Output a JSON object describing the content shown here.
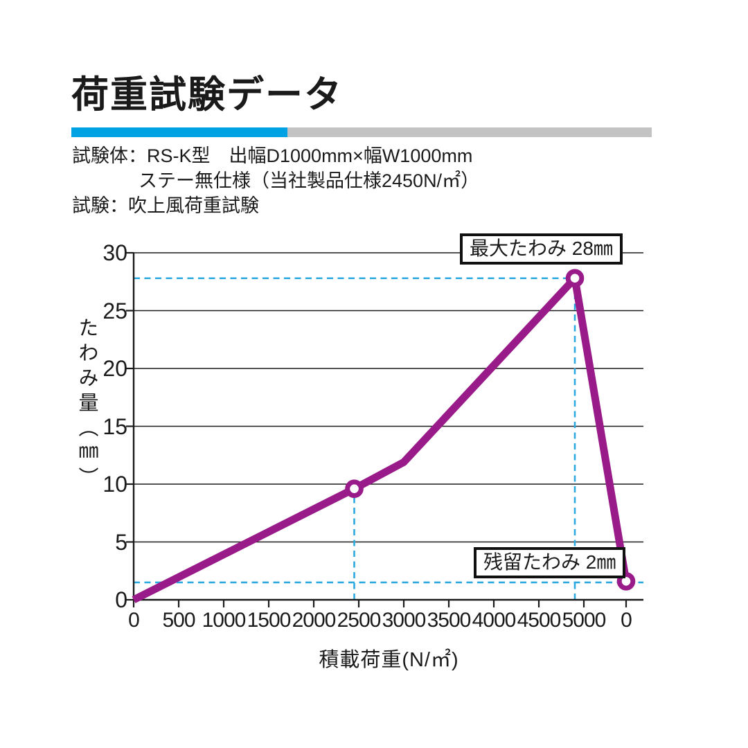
{
  "page": {
    "title": "荷重試験データ"
  },
  "specs": {
    "line1": "試験体：RS-K型　出幅D1000mm×幅W1000mm",
    "line2": "ステー無仕様（当社製品仕様2450N/㎡）",
    "line3": "試験：吹上風荷重試験"
  },
  "colors": {
    "accent_blue": "#00a2e3",
    "bar_gray": "#c3c3c3",
    "line_purple": "#991b8a",
    "guide_cyan": "#2ba9e0",
    "grid_black": "#1a1a1a"
  },
  "chart_data": {
    "type": "line",
    "title": "",
    "xlabel": "積載荷重(N/㎡)",
    "ylabel": "たわみ量（㎜）",
    "xlim": [
      0,
      5000
    ],
    "ylim": [
      0,
      30
    ],
    "grid": "horizontal-only",
    "legend": "none",
    "x_ticks": [
      0,
      500,
      1000,
      1500,
      2000,
      2500,
      3000,
      3500,
      4000,
      4500,
      5000
    ],
    "x_unload_tick_label": "0",
    "y_ticks": [
      0,
      5,
      10,
      15,
      20,
      25,
      30
    ],
    "series": [
      {
        "name": "たわみ量",
        "color": "#991b8a",
        "points": [
          {
            "x": 0,
            "y": 0
          },
          {
            "x": 2450,
            "y": 9.6,
            "marker": true
          },
          {
            "x": 3000,
            "y": 11.9
          },
          {
            "x": 4900,
            "y": 27.8,
            "marker": true
          },
          {
            "x": 0,
            "y": 1.6,
            "marker": true,
            "unloaded": true
          }
        ]
      }
    ],
    "guides": [
      {
        "type": "h",
        "y": 27.8,
        "x_from": 0,
        "x_to": 4900
      },
      {
        "type": "v",
        "x": 4900,
        "y_from": 0,
        "y_to": 27.8
      },
      {
        "type": "v",
        "x": 2450,
        "y_from": 0,
        "y_to": 9.6
      },
      {
        "type": "h",
        "y": 1.5,
        "x_from": 0,
        "x_to": "right"
      }
    ],
    "annotations": [
      {
        "id": "max",
        "text": "最大たわみ 28㎜",
        "stated_value_mm": 28
      },
      {
        "id": "residual",
        "text": "残留たわみ 2㎜",
        "stated_value_mm": 2
      }
    ]
  }
}
